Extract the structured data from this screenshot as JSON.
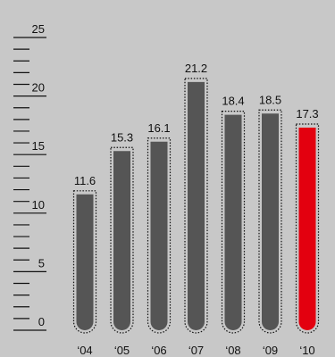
{
  "chart_data": {
    "type": "bar",
    "categories": [
      "‘04",
      "‘05",
      "‘06",
      "‘07",
      "‘08",
      "‘09",
      "‘10"
    ],
    "values": [
      11.6,
      15.3,
      16.1,
      21.2,
      18.4,
      18.5,
      17.3
    ],
    "value_labels": [
      "11.6",
      "15.3",
      "16.1",
      "21.2",
      "18.4",
      "18.5",
      "17.3"
    ],
    "ylim": [
      0,
      25
    ],
    "yticks": [
      {
        "value": 0,
        "label": "0"
      },
      {
        "value": 5,
        "label": "5"
      },
      {
        "value": 10,
        "label": "10"
      },
      {
        "value": 15,
        "label": "15"
      },
      {
        "value": 20,
        "label": "20"
      },
      {
        "value": 25,
        "label": "25"
      }
    ],
    "minor_tick_step": 1,
    "highlight_index": 6,
    "colors": {
      "background": "#c8c8c8",
      "bar": "#555555",
      "highlight_bar": "#e3000f",
      "outline": "#111111",
      "text": "#111111"
    },
    "grid": false,
    "legend": "none"
  }
}
